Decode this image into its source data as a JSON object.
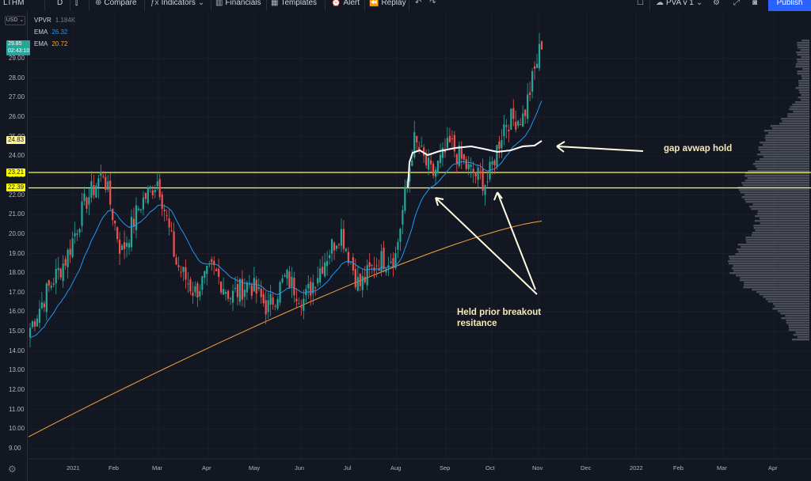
{
  "toolbar": {
    "symbol": "LTHM",
    "interval": "D",
    "compare": "Compare",
    "indicators": "Indicators",
    "financials": "Financials",
    "templates": "Templates",
    "alert": "Alert",
    "replay": "Replay",
    "layout_name": "PVA v 1",
    "publish": "Publish"
  },
  "currency": "USD",
  "legend": [
    {
      "name": "VPVR",
      "value": "1.184K",
      "color": "#787b86"
    },
    {
      "name": "EMA",
      "value": "26.32",
      "color": "#2196f3"
    },
    {
      "name": "EMA",
      "value": "20.72",
      "color": "#f7a440"
    }
  ],
  "price_axis": {
    "ticks": [
      "29.00",
      "28.00",
      "27.00",
      "26.00",
      "25.00",
      "24.00",
      "23.00",
      "22.00",
      "21.00",
      "20.00",
      "19.00",
      "18.00",
      "17.00",
      "16.00",
      "15.00",
      "14.00",
      "13.00",
      "12.00",
      "11.00",
      "10.00",
      "9.00"
    ],
    "last_price": "29.85",
    "countdown": "02:43:10",
    "labels": [
      {
        "value": "24.83",
        "color": "#fff59d"
      },
      {
        "value": "23.21",
        "color": "#ffff00"
      },
      {
        "value": "22.39",
        "color": "#ffff00"
      }
    ]
  },
  "time_axis": [
    "2021",
    "Feb",
    "Mar",
    "Apr",
    "May",
    "Jun",
    "Jul",
    "Aug",
    "Sep",
    "Oct",
    "Nov",
    "Dec",
    "2022",
    "Feb",
    "Mar",
    "Apr"
  ],
  "annotations": {
    "gap": "gap avwap hold",
    "held_line1": "Held prior breakout",
    "held_line2": "resitance"
  },
  "chart_data": {
    "type": "candlestick",
    "horizontal_levels": [
      23.21,
      22.39
    ],
    "ylim": [
      8.5,
      30.2
    ],
    "ema_fast_last": 26.32,
    "ema_slow_last": 20.72,
    "avwap_last": 24.83,
    "close_series_approx": [
      {
        "x": "2021-01-04",
        "c": 15.2
      },
      {
        "x": "2021-01-11",
        "c": 17.2
      },
      {
        "x": "2021-01-18",
        "c": 18.8
      },
      {
        "x": "2021-01-25",
        "c": 21.6
      },
      {
        "x": "2021-02-01",
        "c": 23.2
      },
      {
        "x": "2021-02-08",
        "c": 19.0
      },
      {
        "x": "2021-02-15",
        "c": 21.5
      },
      {
        "x": "2021-02-22",
        "c": 22.8
      },
      {
        "x": "2021-03-01",
        "c": 18.5
      },
      {
        "x": "2021-03-08",
        "c": 17.0
      },
      {
        "x": "2021-03-15",
        "c": 18.2
      },
      {
        "x": "2021-03-22",
        "c": 16.8
      },
      {
        "x": "2021-04-05",
        "c": 17.5
      },
      {
        "x": "2021-04-19",
        "c": 16.2
      },
      {
        "x": "2021-05-03",
        "c": 17.8
      },
      {
        "x": "2021-05-17",
        "c": 16.6
      },
      {
        "x": "2021-06-01",
        "c": 18.5
      },
      {
        "x": "2021-06-14",
        "c": 20.2
      },
      {
        "x": "2021-06-28",
        "c": 17.3
      },
      {
        "x": "2021-07-12",
        "c": 18.6
      },
      {
        "x": "2021-07-26",
        "c": 18.9
      },
      {
        "x": "2021-08-09",
        "c": 24.8
      },
      {
        "x": "2021-08-23",
        "c": 23.0
      },
      {
        "x": "2021-09-06",
        "c": 24.6
      },
      {
        "x": "2021-09-20",
        "c": 23.3
      },
      {
        "x": "2021-10-04",
        "c": 22.6
      },
      {
        "x": "2021-10-18",
        "c": 25.8
      },
      {
        "x": "2021-10-25",
        "c": 26.0
      },
      {
        "x": "2021-11-01",
        "c": 29.85
      }
    ]
  }
}
